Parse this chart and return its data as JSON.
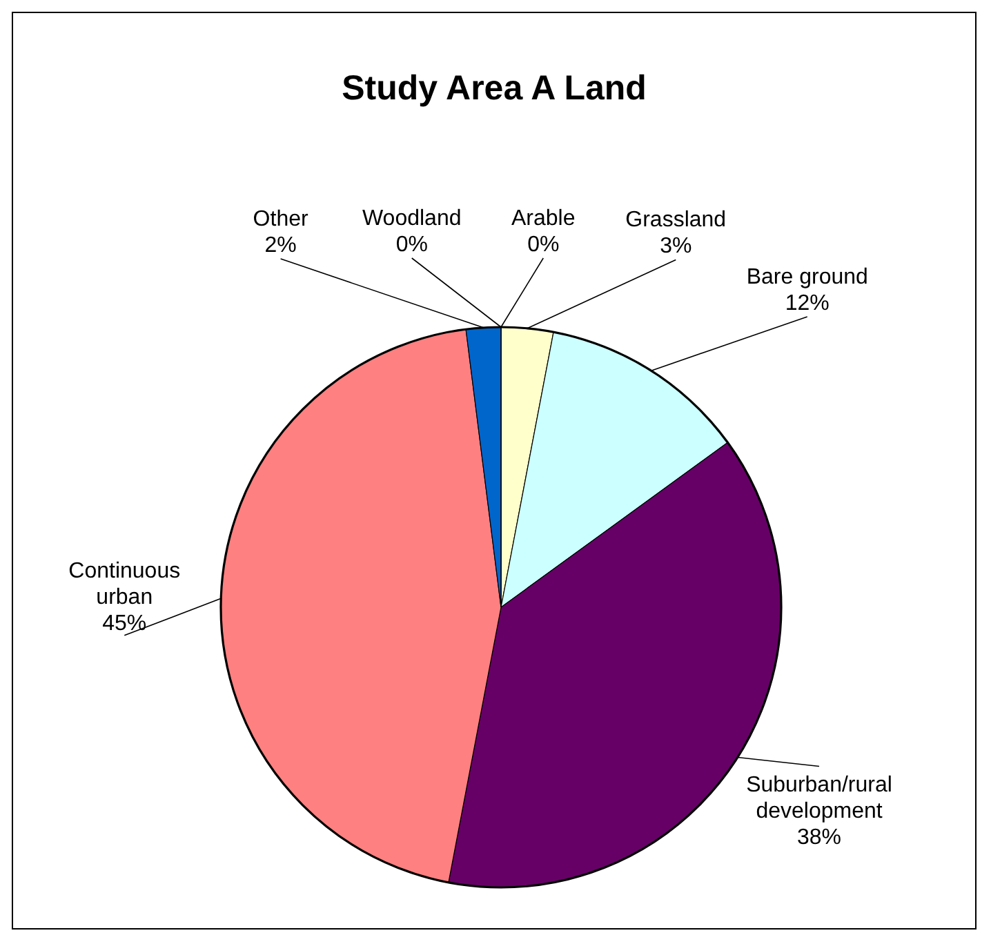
{
  "chart_data": {
    "type": "pie",
    "title": "Study Area A Land",
    "categories": [
      "Arable",
      "Grassland",
      "Bare ground",
      "Suburban/rural development",
      "Continuous urban",
      "Other",
      "Woodland"
    ],
    "values": [
      0,
      3,
      12,
      38,
      45,
      2,
      0
    ],
    "colors": [
      "#993366",
      "#ffffcc",
      "#ccffff",
      "#660066",
      "#ff8080",
      "#0066cc",
      "#9999ff"
    ],
    "value_labels": [
      "0%",
      "3%",
      "12%",
      "38%",
      "45%",
      "2%",
      "0%"
    ]
  }
}
